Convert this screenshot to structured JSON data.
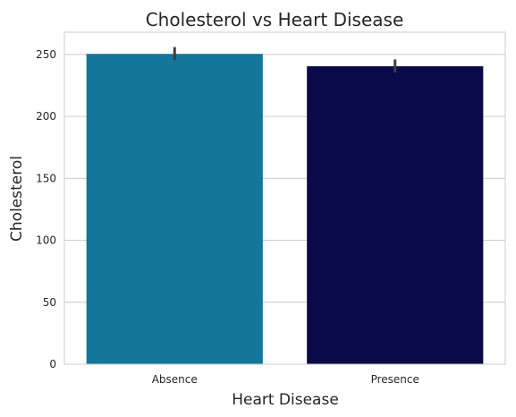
{
  "chart_data": {
    "type": "bar",
    "title": "Cholesterol vs Heart Disease",
    "xlabel": "Heart Disease",
    "ylabel": "Cholesterol",
    "categories": [
      "Absence",
      "Presence"
    ],
    "values": [
      250.5,
      240.5
    ],
    "error_intervals": [
      [
        245.5,
        256
      ],
      [
        235.5,
        246
      ]
    ],
    "colors": [
      "#13769a",
      "#0a0a4b"
    ],
    "ylim": [
      0,
      268
    ],
    "yticks": [
      0,
      50,
      100,
      150,
      200,
      250
    ],
    "grid": true,
    "grid_axis": "y"
  }
}
